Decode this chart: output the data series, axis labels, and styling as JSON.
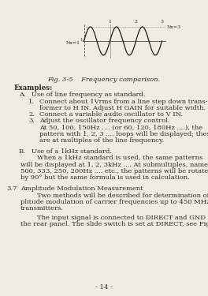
{
  "figure_caption": "Fig. 3-5    Frequency comparison.",
  "diagram_label_Nx1": "Nx=1",
  "diagram_label_Nx3": "Nx=3",
  "page_number": "- 14 -",
  "bg_color": "#f0ece4",
  "text_color": "#2a2a2a"
}
